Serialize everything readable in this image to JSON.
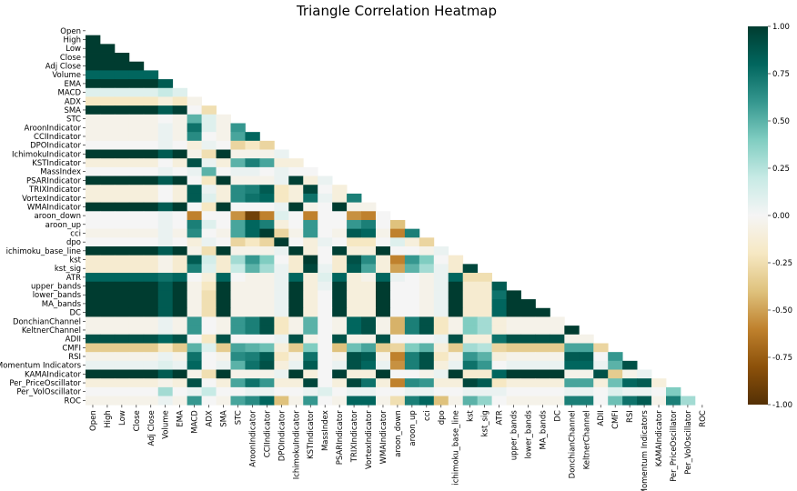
{
  "chart_data": {
    "type": "heatmap",
    "title": "Triangle Correlation Heatmap",
    "variables": [
      "Open",
      "High",
      "Low",
      "Close",
      "Adj Close",
      "Volume",
      "EMA",
      "MACD",
      "ADX",
      "SMA",
      "STC",
      "AroonIndicator",
      "CCIIndicator",
      "DPOIndicator",
      "IchimokuIndicator",
      "KSTIndicator",
      "MassIndex",
      "PSARIndicator",
      "TRIXIndicator",
      "VortexIndicator",
      "WMAIndicator",
      "aroon_down",
      "aroon_up",
      "cci",
      "dpo",
      "ichimoku_base_line",
      "kst",
      "kst_sig",
      "ATR",
      "upper_bands",
      "lower_bands",
      "MA_bands",
      "DC",
      "DonchianChannel",
      "KeltnerChannel",
      "ADII",
      "CMFI",
      "RSI",
      "Momentum Indicators",
      "KAMAIndicator",
      "Per_PriceOscillator",
      "Per_VolOscillator",
      "ROC"
    ],
    "mask": "upper-triangle-and-diagonal",
    "colormap": "BrBG",
    "vmin": -1.0,
    "vmax": 1.0,
    "colorbar_ticks": [
      "1.00",
      "0.75",
      "0.50",
      "0.25",
      "0.00",
      "-0.25",
      "-0.50",
      "-0.75",
      "-1.00"
    ],
    "matrix": [
      [
        1
      ],
      [
        1.0,
        1
      ],
      [
        1.0,
        1.0,
        1
      ],
      [
        1.0,
        1.0,
        1.0,
        1
      ],
      [
        1.0,
        1.0,
        1.0,
        1.0,
        1
      ],
      [
        0.8,
        0.8,
        0.8,
        0.8,
        0.8,
        1
      ],
      [
        1.0,
        1.0,
        1.0,
        1.0,
        1.0,
        0.85,
        1
      ],
      [
        0.1,
        0.1,
        0.1,
        0.1,
        0.1,
        0.2,
        0.1,
        1
      ],
      [
        -0.2,
        -0.2,
        -0.2,
        -0.2,
        -0.2,
        -0.1,
        -0.2,
        -0.05,
        1
      ],
      [
        1.0,
        1.0,
        1.0,
        1.0,
        1.0,
        0.85,
        0.98,
        0.0,
        -0.25,
        1
      ],
      [
        -0.05,
        -0.05,
        -0.05,
        -0.05,
        -0.05,
        0.0,
        -0.05,
        0.5,
        0.1,
        -0.05,
        1
      ],
      [
        -0.05,
        -0.05,
        -0.05,
        -0.05,
        -0.05,
        0.05,
        -0.05,
        0.75,
        0.1,
        -0.05,
        0.6,
        1
      ],
      [
        -0.05,
        -0.05,
        -0.05,
        -0.05,
        -0.05,
        0.05,
        -0.05,
        0.65,
        0.0,
        -0.05,
        0.55,
        0.8,
        1
      ],
      [
        0.0,
        0.0,
        0.0,
        0.0,
        0.0,
        0.05,
        0.0,
        -0.1,
        0.05,
        0.0,
        -0.3,
        -0.2,
        -0.3,
        1
      ],
      [
        1.0,
        1.0,
        1.0,
        1.0,
        1.0,
        0.85,
        1.0,
        -0.05,
        -0.25,
        1.0,
        -0.05,
        -0.05,
        -0.05,
        0.05,
        1
      ],
      [
        -0.1,
        -0.1,
        -0.1,
        -0.1,
        -0.1,
        0.0,
        -0.1,
        0.9,
        0.05,
        -0.1,
        0.5,
        0.7,
        0.55,
        -0.1,
        -0.1,
        1
      ],
      [
        0.0,
        0.0,
        0.0,
        0.0,
        0.0,
        0.05,
        0.0,
        0.05,
        0.5,
        0.0,
        0.05,
        0.05,
        0.0,
        0.05,
        0.0,
        0.0,
        1
      ],
      [
        1.0,
        1.0,
        1.0,
        1.0,
        1.0,
        0.85,
        1.0,
        0.0,
        -0.2,
        1.0,
        -0.05,
        -0.05,
        -0.05,
        0.05,
        0.98,
        -0.1,
        0.05,
        1
      ],
      [
        -0.1,
        -0.1,
        -0.1,
        -0.1,
        -0.1,
        0.0,
        -0.1,
        0.85,
        0.05,
        -0.1,
        0.65,
        0.7,
        0.85,
        -0.2,
        -0.1,
        0.95,
        0.0,
        -0.1,
        1
      ],
      [
        -0.1,
        -0.1,
        -0.1,
        -0.1,
        -0.1,
        0.0,
        -0.1,
        0.85,
        0.1,
        -0.1,
        0.65,
        0.75,
        0.8,
        -0.2,
        -0.1,
        0.75,
        0.05,
        -0.1,
        0.7,
        1
      ],
      [
        1.0,
        1.0,
        1.0,
        1.0,
        1.0,
        0.85,
        1.0,
        0.0,
        -0.2,
        1.0,
        0.0,
        0.0,
        0.0,
        0.05,
        1.0,
        -0.05,
        0.0,
        1.0,
        -0.05,
        -0.05,
        1
      ],
      [
        0.0,
        0.0,
        0.0,
        0.0,
        0.0,
        0.05,
        0.0,
        -0.6,
        0.0,
        0.0,
        -0.55,
        -0.9,
        -0.6,
        0.1,
        0.0,
        -0.6,
        0.0,
        0.0,
        -0.55,
        -0.6,
        0.0,
        1
      ],
      [
        0.0,
        0.0,
        0.0,
        0.0,
        0.0,
        0.05,
        0.0,
        0.7,
        0.1,
        0.0,
        0.55,
        0.8,
        0.7,
        -0.1,
        0.0,
        0.6,
        0.0,
        0.0,
        0.6,
        0.7,
        0.0,
        -0.4,
        1
      ],
      [
        -0.05,
        -0.05,
        -0.05,
        -0.05,
        -0.05,
        0.05,
        -0.05,
        0.65,
        0.0,
        -0.05,
        0.55,
        0.8,
        1.0,
        -0.3,
        -0.05,
        0.6,
        0.0,
        -0.05,
        0.85,
        0.8,
        -0.05,
        -0.6,
        0.7,
        1
      ],
      [
        0.0,
        0.0,
        0.0,
        0.0,
        0.0,
        0.05,
        0.0,
        -0.1,
        0.05,
        0.0,
        -0.3,
        -0.2,
        -0.3,
        1.0,
        0.0,
        -0.1,
        0.05,
        0.0,
        -0.2,
        -0.2,
        0.0,
        0.1,
        -0.1,
        -0.3,
        1
      ],
      [
        1.0,
        1.0,
        1.0,
        1.0,
        1.0,
        0.85,
        1.0,
        -0.05,
        -0.25,
        1.0,
        -0.05,
        -0.05,
        -0.05,
        0.05,
        1.0,
        -0.1,
        0.0,
        0.98,
        -0.1,
        -0.1,
        1.0,
        0.0,
        0.0,
        -0.05,
        0.05,
        1
      ],
      [
        -0.15,
        -0.15,
        -0.15,
        -0.15,
        -0.15,
        -0.05,
        -0.15,
        0.85,
        0.15,
        -0.15,
        0.3,
        0.6,
        0.4,
        0.0,
        -0.15,
        1.0,
        0.0,
        -0.15,
        0.9,
        0.65,
        -0.1,
        -0.6,
        0.6,
        0.4,
        0.0,
        -0.15,
        1
      ],
      [
        -0.15,
        -0.15,
        -0.15,
        -0.15,
        -0.15,
        -0.05,
        -0.15,
        0.7,
        0.1,
        -0.15,
        0.2,
        0.5,
        0.3,
        0.05,
        -0.15,
        0.95,
        0.05,
        -0.15,
        0.85,
        0.55,
        -0.1,
        -0.5,
        0.5,
        0.3,
        0.05,
        -0.15,
        0.95,
        1
      ],
      [
        0.8,
        0.8,
        0.8,
        0.8,
        0.8,
        0.75,
        0.8,
        0.0,
        -0.1,
        0.8,
        0.0,
        -0.05,
        -0.05,
        0.05,
        0.8,
        -0.1,
        0.1,
        0.8,
        -0.1,
        -0.05,
        0.8,
        0.05,
        0.0,
        -0.05,
        0.05,
        0.8,
        -0.25,
        -0.25,
        1
      ],
      [
        1.0,
        1.0,
        1.0,
        1.0,
        1.0,
        0.85,
        1.0,
        -0.05,
        -0.2,
        1.0,
        -0.05,
        -0.05,
        -0.05,
        0.05,
        1.0,
        -0.1,
        0.05,
        0.98,
        -0.1,
        -0.1,
        1.0,
        0.0,
        0.0,
        -0.05,
        0.05,
        1.0,
        -0.15,
        -0.15,
        0.85,
        1
      ],
      [
        1.0,
        1.0,
        1.0,
        1.0,
        1.0,
        0.85,
        1.0,
        -0.05,
        -0.25,
        1.0,
        -0.05,
        -0.05,
        -0.05,
        0.05,
        1.0,
        -0.1,
        0.0,
        0.98,
        -0.1,
        -0.1,
        1.0,
        0.0,
        0.0,
        -0.05,
        0.05,
        1.0,
        -0.15,
        -0.15,
        0.75,
        1.0,
        1
      ],
      [
        1.0,
        1.0,
        1.0,
        1.0,
        1.0,
        0.85,
        1.0,
        -0.05,
        -0.25,
        1.0,
        -0.05,
        -0.05,
        -0.05,
        0.05,
        1.0,
        -0.1,
        0.0,
        0.98,
        -0.1,
        -0.1,
        1.0,
        0.0,
        0.0,
        -0.05,
        0.05,
        1.0,
        -0.15,
        -0.15,
        0.8,
        1.0,
        1.0,
        1
      ],
      [
        1.0,
        1.0,
        1.0,
        1.0,
        1.0,
        0.85,
        1.0,
        -0.05,
        -0.25,
        1.0,
        -0.05,
        -0.05,
        -0.05,
        0.05,
        1.0,
        -0.1,
        0.0,
        0.98,
        -0.1,
        -0.1,
        1.0,
        0.0,
        0.0,
        -0.05,
        0.05,
        1.0,
        -0.15,
        -0.15,
        0.8,
        1.0,
        1.0,
        1.0,
        1
      ],
      [
        -0.05,
        -0.05,
        -0.05,
        -0.05,
        -0.05,
        0.05,
        -0.05,
        0.6,
        0.0,
        -0.05,
        0.6,
        0.7,
        0.9,
        -0.2,
        -0.05,
        0.5,
        0.0,
        -0.05,
        0.8,
        0.9,
        -0.05,
        -0.45,
        0.7,
        0.9,
        -0.2,
        -0.05,
        0.4,
        0.3,
        -0.1,
        -0.05,
        -0.05,
        -0.05,
        -0.05,
        1
      ],
      [
        -0.05,
        -0.05,
        -0.05,
        -0.05,
        -0.05,
        0.05,
        -0.05,
        0.6,
        0.0,
        -0.05,
        0.6,
        0.7,
        0.9,
        -0.2,
        -0.05,
        0.5,
        0.0,
        -0.05,
        0.8,
        0.9,
        -0.05,
        -0.45,
        0.7,
        0.9,
        -0.2,
        -0.05,
        0.4,
        0.3,
        -0.1,
        -0.05,
        -0.05,
        -0.05,
        -0.05,
        1.0,
        1
      ],
      [
        0.9,
        0.9,
        0.9,
        0.9,
        0.9,
        0.8,
        0.9,
        0.0,
        -0.2,
        0.9,
        0.0,
        0.0,
        0.0,
        0.05,
        0.9,
        -0.05,
        0.0,
        0.9,
        -0.05,
        -0.05,
        0.9,
        0.0,
        0.0,
        0.0,
        0.05,
        0.9,
        -0.1,
        -0.1,
        0.75,
        0.9,
        0.9,
        0.9,
        0.9,
        -0.05,
        -0.05,
        1
      ],
      [
        -0.35,
        -0.35,
        -0.35,
        -0.35,
        -0.35,
        -0.2,
        -0.35,
        0.5,
        0.1,
        -0.35,
        0.55,
        0.5,
        0.45,
        -0.1,
        -0.35,
        0.4,
        0.0,
        -0.4,
        0.45,
        0.55,
        -0.35,
        -0.3,
        0.4,
        0.5,
        -0.1,
        -0.35,
        0.3,
        0.25,
        -0.3,
        -0.35,
        -0.35,
        -0.35,
        -0.35,
        0.55,
        0.55,
        -0.3,
        1
      ],
      [
        -0.05,
        -0.05,
        -0.05,
        -0.05,
        -0.05,
        0.05,
        -0.05,
        0.75,
        0.0,
        -0.05,
        0.65,
        0.7,
        0.85,
        -0.2,
        -0.05,
        0.75,
        0.0,
        -0.05,
        0.9,
        0.85,
        -0.05,
        -0.6,
        0.7,
        0.9,
        -0.2,
        -0.05,
        0.6,
        0.5,
        -0.1,
        -0.05,
        -0.05,
        -0.05,
        -0.05,
        0.85,
        0.85,
        0.0,
        0.6,
        1
      ],
      [
        0.05,
        0.05,
        0.05,
        0.05,
        0.05,
        0.1,
        0.05,
        0.8,
        0.0,
        0.05,
        0.5,
        0.75,
        0.9,
        -0.1,
        0.05,
        0.85,
        0.0,
        0.05,
        0.9,
        0.8,
        0.05,
        -0.55,
        0.7,
        0.9,
        -0.1,
        0.05,
        0.75,
        0.6,
        0.0,
        0.05,
        0.05,
        0.05,
        0.05,
        0.8,
        0.8,
        0.05,
        0.5,
        0.9,
        1
      ],
      [
        1.0,
        1.0,
        1.0,
        1.0,
        1.0,
        0.85,
        1.0,
        -0.05,
        -0.25,
        1.0,
        -0.05,
        -0.05,
        -0.05,
        0.05,
        1.0,
        -0.1,
        0.0,
        0.98,
        -0.1,
        -0.1,
        1.0,
        0.0,
        0.0,
        -0.05,
        0.05,
        1.0,
        -0.15,
        -0.15,
        0.8,
        1.0,
        1.0,
        1.0,
        1.0,
        -0.05,
        -0.05,
        0.9,
        -0.35,
        -0.05,
        0.05,
        1
      ],
      [
        -0.1,
        -0.1,
        -0.1,
        -0.1,
        -0.1,
        -0.05,
        -0.1,
        0.9,
        0.0,
        -0.1,
        0.55,
        0.75,
        0.6,
        -0.1,
        -0.1,
        0.95,
        0.0,
        -0.1,
        0.95,
        0.75,
        -0.1,
        -0.6,
        0.65,
        0.6,
        -0.1,
        -0.1,
        0.95,
        0.85,
        -0.2,
        -0.1,
        -0.1,
        -0.1,
        -0.1,
        0.55,
        0.55,
        -0.1,
        0.45,
        0.8,
        0.85,
        -0.1,
        1
      ],
      [
        0.0,
        0.0,
        0.0,
        0.0,
        0.0,
        0.3,
        0.0,
        0.05,
        0.2,
        0.0,
        0.0,
        0.05,
        0.05,
        0.0,
        0.0,
        0.05,
        0.1,
        0.0,
        0.05,
        0.05,
        0.0,
        0.0,
        0.05,
        0.05,
        0.0,
        0.0,
        0.05,
        0.05,
        0.05,
        0.0,
        0.0,
        0.0,
        0.0,
        0.05,
        0.05,
        0.0,
        0.1,
        0.05,
        0.05,
        0.0,
        0.4,
        1
      ],
      [
        -0.05,
        -0.05,
        -0.05,
        -0.05,
        -0.05,
        0.05,
        -0.05,
        0.6,
        0.0,
        -0.05,
        0.55,
        0.65,
        0.8,
        -0.4,
        -0.05,
        0.6,
        0.0,
        -0.05,
        0.8,
        0.8,
        -0.05,
        -0.25,
        0.7,
        0.8,
        -0.4,
        -0.05,
        0.5,
        0.35,
        0.0,
        -0.05,
        -0.05,
        -0.05,
        -0.05,
        0.7,
        0.7,
        0.0,
        0.45,
        0.75,
        0.85,
        -0.05,
        0.7,
        0.3,
        1
      ]
    ]
  }
}
